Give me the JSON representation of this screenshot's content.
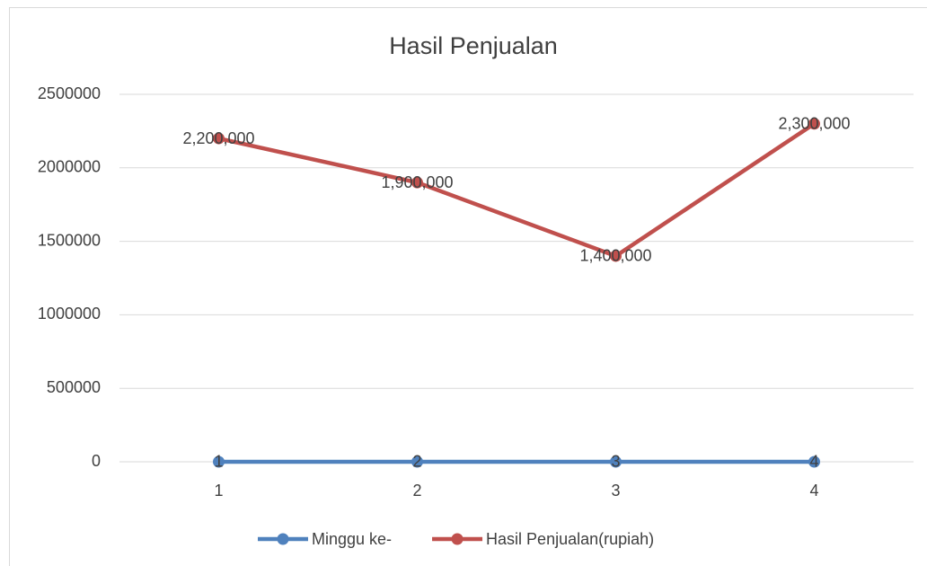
{
  "chart_data": {
    "type": "line",
    "title": "Hasil Penjualan",
    "categories": [
      "1",
      "2",
      "3",
      "4"
    ],
    "series": [
      {
        "name": "Minggu ke-",
        "color": "#4f81bd",
        "values": [
          1,
          2,
          3,
          4
        ]
      },
      {
        "name": "Hasil Penjualan(rupiah)",
        "color": "#c0504d",
        "values": [
          2200000,
          1900000,
          1400000,
          2300000
        ],
        "value_labels": [
          "2,200,000",
          "1,900,000",
          "1,400,000",
          "2,300,000"
        ]
      }
    ],
    "ylim": [
      0,
      2500000
    ],
    "yticks": [
      0,
      500000,
      1000000,
      1500000,
      2000000,
      2500000
    ],
    "grid": true,
    "legend": "bottom"
  }
}
